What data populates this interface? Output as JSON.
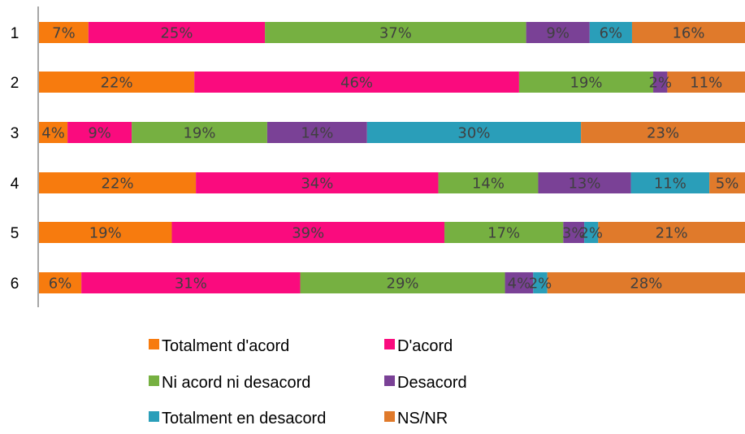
{
  "chart_data": {
    "type": "bar",
    "orientation": "horizontal",
    "stacked": "percent",
    "categories": [
      "1",
      "2",
      "3",
      "4",
      "5",
      "6"
    ],
    "series": [
      {
        "name": "Totalment d'acord",
        "color": "#F77B0E",
        "values": [
          7,
          22,
          4,
          22,
          19,
          6
        ]
      },
      {
        "name": "D'acord",
        "color": "#FA0B7E",
        "values": [
          25,
          46,
          9,
          34,
          39,
          31
        ]
      },
      {
        "name": "Ni acord ni desacord",
        "color": "#76B041",
        "values": [
          37,
          19,
          19,
          14,
          17,
          29
        ]
      },
      {
        "name": "Desacord",
        "color": "#7A4196",
        "values": [
          9,
          2,
          14,
          13,
          3,
          4
        ]
      },
      {
        "name": "Totalment en desacord",
        "color": "#2A9EB9",
        "values": [
          6,
          0,
          30,
          11,
          2,
          2
        ]
      },
      {
        "name": "NS/NR",
        "color": "#E07A2B",
        "values": [
          16,
          11,
          23,
          5,
          21,
          28
        ]
      }
    ],
    "data_labels": [
      [
        "7%",
        "25%",
        "37%",
        "9%",
        "6%",
        "16%"
      ],
      [
        "22%",
        "46%",
        "19%",
        "2%",
        "",
        "11%"
      ],
      [
        "4%",
        "9%",
        "19%",
        "14%",
        "30%",
        "23%"
      ],
      [
        "22%",
        "34%",
        "14%",
        "13%",
        "11%",
        "5%"
      ],
      [
        "19%",
        "39%",
        "17%",
        "3%",
        "2%",
        "21%"
      ],
      [
        "6%",
        "31%",
        "29%",
        "4%",
        "2%",
        "28%"
      ]
    ],
    "title": "",
    "xlabel": "",
    "ylabel": "",
    "xlim": [
      0,
      100
    ],
    "grid": false,
    "legend_position": "bottom"
  }
}
